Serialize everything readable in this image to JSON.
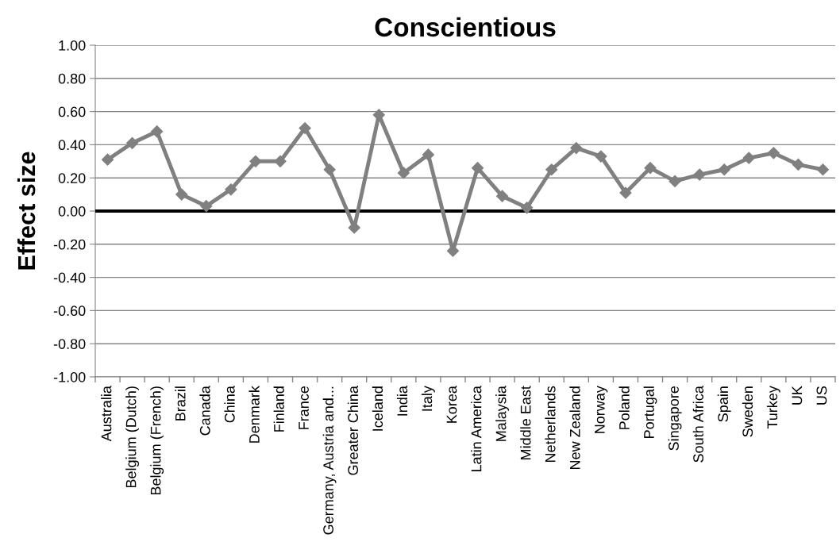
{
  "chart_data": {
    "type": "line",
    "title": "Conscientious",
    "ylabel": "Effect size",
    "categories": [
      "Australia",
      "Belgium (Dutch)",
      "Belgium (French)",
      "Brazil",
      "Canada",
      "China",
      "Denmark",
      "Finland",
      "France",
      "Germany, Austria and...",
      "Greater China",
      "Iceland",
      "India",
      "Italy",
      "Korea",
      "Latin America",
      "Malaysia",
      "Middle East",
      "Netherlands",
      "New Zealand",
      "Norway",
      "Poland",
      "Portugal",
      "Singapore",
      "South Africa",
      "Spain",
      "Sweden",
      "Turkey",
      "UK",
      "US"
    ],
    "series": [
      {
        "color": "#808080",
        "values": [
          0.31,
          0.41,
          0.48,
          0.1,
          0.03,
          0.13,
          0.3,
          0.3,
          0.5,
          0.25,
          -0.1,
          0.58,
          0.23,
          0.34,
          -0.24,
          0.26,
          0.09,
          0.02,
          0.25,
          0.38,
          0.33,
          0.11,
          0.26,
          0.18,
          0.22,
          0.25,
          0.32,
          0.35,
          0.28,
          0.25
        ]
      }
    ],
    "ylim": [
      -1.0,
      1.0
    ],
    "yticks": [
      {
        "value": -1.0,
        "label": "-1.00"
      },
      {
        "value": -0.8,
        "label": "-0.80"
      },
      {
        "value": -0.6,
        "label": "-0.60"
      },
      {
        "value": -0.4,
        "label": "-0.40"
      },
      {
        "value": -0.2,
        "label": "-0.20"
      },
      {
        "value": 0.0,
        "label": "0.00"
      },
      {
        "value": 0.2,
        "label": "0.20"
      },
      {
        "value": 0.4,
        "label": "0.40"
      },
      {
        "value": 0.6,
        "label": "0.60"
      },
      {
        "value": 0.8,
        "label": "0.80"
      },
      {
        "value": 1.0,
        "label": "1.00"
      }
    ],
    "ref_lines": [
      {
        "axis": "y",
        "value": 0.0,
        "color": "#000000"
      }
    ],
    "grid": "y",
    "marker": "diamond",
    "line_style": "solid"
  }
}
